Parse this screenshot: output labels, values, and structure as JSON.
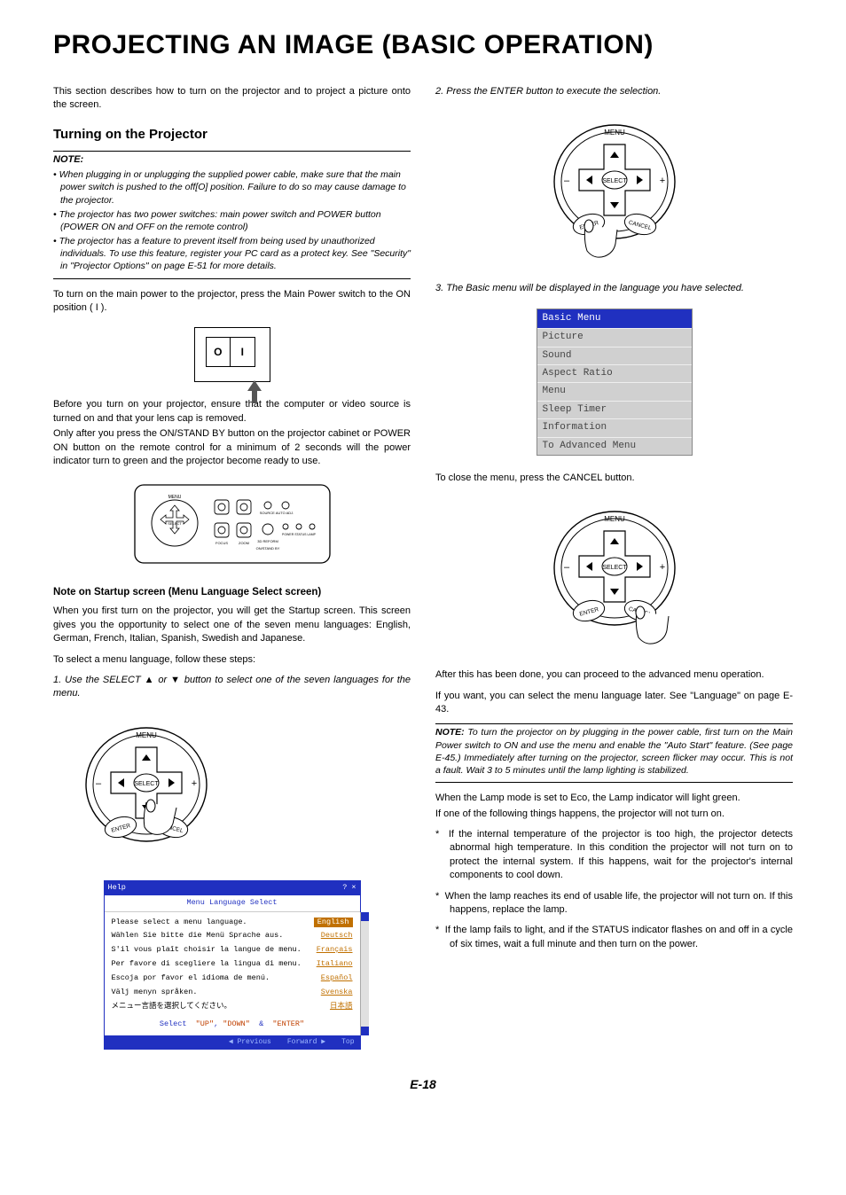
{
  "title": "PROJECTING AN IMAGE (BASIC OPERATION)",
  "intro": "This section describes how to turn on the projector and to project a picture onto the screen.",
  "section1": {
    "heading": "Turning on the Projector",
    "note_label": "NOTE:",
    "notes": [
      "When plugging in or unplugging the supplied power cable, make sure that the main power switch is pushed to the off[O] position. Failure to do so may cause damage to the projector.",
      "The projector has two power switches: main power switch and POWER button (POWER ON and OFF on the remote control)",
      "The projector has a feature to prevent itself from being used by unauthorized individuals. To use this feature, register your PC card as a protect key. See \"Security\" in \"Projector Options\" on page E-51 for more details."
    ],
    "p1": "To turn on the main power to the projector, press the Main Power switch to the ON position ( I ).",
    "switch_O": "O",
    "switch_I": "I",
    "p2": "Before you turn on your projector, ensure that the computer or video source is turned on and that your lens cap is removed.",
    "p3": "Only after you press the ON/STAND BY button on the projector cabinet or POWER ON button on the remote control for a minimum of 2 seconds will the power indicator turn to green and the projector become ready to use."
  },
  "startup": {
    "heading": "Note on Startup screen (Menu Language Select screen)",
    "p1": "When you first turn on the projector, you will get the Startup screen. This screen gives you the opportunity to select one of the seven menu languages: English, German, French, Italian, Spanish, Swedish and Japanese.",
    "p2": "To select a menu language, follow these steps:",
    "step1": "1. Use the SELECT ▲ or ▼ button to select one of the seven languages for the menu."
  },
  "pad": {
    "menu": "MENU",
    "select": "SELECT",
    "enter": "ENTER",
    "cancel": "CANCEL",
    "minus": "–",
    "plus": "+"
  },
  "lang_win": {
    "title": "Help",
    "header": "Menu Language Select",
    "rows": [
      {
        "txt": "Please select a menu language.",
        "opt": "English",
        "sel": true
      },
      {
        "txt": "Wählen Sie bitte die Menü Sprache aus.",
        "opt": "Deutsch",
        "sel": false
      },
      {
        "txt": "S'il vous plaît choisir la langue de menu.",
        "opt": "Français",
        "sel": false
      },
      {
        "txt": "Per favore di scegliere la lingua di menu.",
        "opt": "Italiano",
        "sel": false
      },
      {
        "txt": "Escoja por favor el idioma de menú.",
        "opt": "Español",
        "sel": false
      },
      {
        "txt": "Välj menyn språken.",
        "opt": "Svenska",
        "sel": false
      },
      {
        "txt": "メニュー言語を選択してください。",
        "opt": "日本語",
        "sel": false
      }
    ],
    "select_line_pre": "Select",
    "select_up": "\"UP\"",
    "select_down": "\"DOWN\"",
    "select_amp": "&",
    "select_enter": "\"ENTER\"",
    "foot_prev": "◀ Previous",
    "foot_fwd": "Forward ▶",
    "foot_top": "Top"
  },
  "right": {
    "step2": "2. Press the ENTER button to execute the selection.",
    "step3": "3. The Basic menu will be displayed in the language you have selected.",
    "menu": {
      "title": "Basic Menu",
      "items": [
        "Picture",
        "Sound",
        "Aspect Ratio",
        "Menu",
        "Sleep Timer",
        "Information",
        "To Advanced Menu"
      ]
    },
    "close_p": "To close the menu, press the CANCEL button.",
    "after1": "After this has been done, you can proceed to the advanced menu operation.",
    "after2": "If you want, you can select the menu language later. See \"Language\" on page E-43.",
    "note_inline": "To turn the projector on by plugging in the power cable, first turn on the Main Power switch to ON and use the menu and enable the \"Auto Start\" feature. (See page E-45.) Immediately after turning on the projector, screen flicker may occur. This is not a fault. Wait 3 to 5 minutes until the lamp lighting is stabilized.",
    "note_label": "NOTE:",
    "lamp_p1": "When the Lamp mode is set to Eco, the Lamp indicator will light green.",
    "lamp_p2": "If one of the following things happens, the projector will not turn on.",
    "bullets": [
      "If the internal temperature of the projector is too high, the projector detects abnormal high temperature. In this condition the projector will not turn on to protect the internal system. If this happens, wait for the projector's internal components to cool down.",
      "When the lamp reaches its end of usable life, the projector will not turn on. If this happens, replace the lamp.",
      "If the lamp fails to light, and if the STATUS indicator flashes on and off in a cycle of six times, wait a full minute and then turn on the power."
    ]
  },
  "page": "E-18"
}
